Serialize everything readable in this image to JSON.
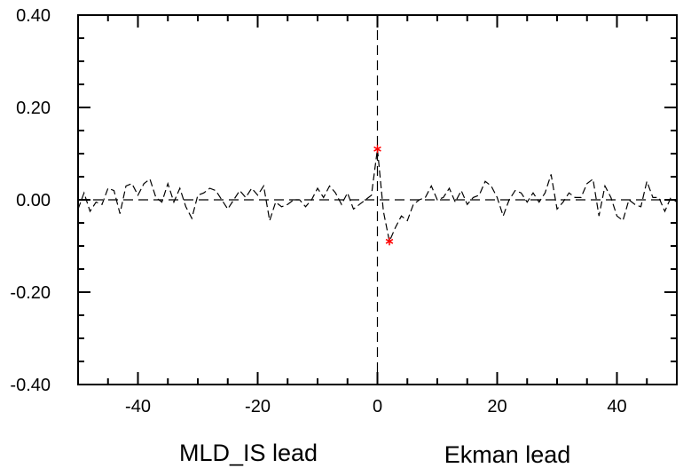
{
  "chart_data": {
    "type": "line",
    "title": "",
    "xlabel_left": "MLD_IS lead",
    "xlabel_right": "Ekman lead",
    "xlim": [
      -50,
      50
    ],
    "ylim": [
      -0.4,
      0.4
    ],
    "x_ticks": [
      -40,
      -20,
      0,
      20,
      40
    ],
    "x_tick_labels": [
      "-40",
      "-20",
      "0",
      "20",
      "40"
    ],
    "y_ticks": [
      -0.4,
      -0.2,
      0.0,
      0.2,
      0.4
    ],
    "y_tick_labels": [
      "-0.40",
      "-0.20",
      "0.00",
      "0.20",
      "0.40"
    ],
    "grid": false,
    "line_style": "dashed",
    "line_color": "#000000",
    "marker_color": "#ff0000",
    "reference_lines": {
      "horizontal_y": 0.0,
      "vertical_x": 0
    },
    "series": [
      {
        "x": [
          -50,
          -49,
          -48,
          -47,
          -46,
          -45,
          -44,
          -43,
          -42,
          -41,
          -40,
          -39,
          -38,
          -37,
          -36,
          -35,
          -34,
          -33,
          -32,
          -31,
          -30,
          -29,
          -28,
          -27,
          -26,
          -25,
          -24,
          -23,
          -22,
          -21,
          -20,
          -19,
          -18,
          -17,
          -16,
          -15,
          -14,
          -13,
          -12,
          -11,
          -10,
          -9,
          -8,
          -7,
          -6,
          -5,
          -4,
          -3,
          -2,
          -1,
          0,
          1,
          2,
          3,
          4,
          5,
          6,
          7,
          8,
          9,
          10,
          11,
          12,
          13,
          14,
          15,
          16,
          17,
          18,
          19,
          20,
          21,
          22,
          23,
          24,
          25,
          26,
          27,
          28,
          29,
          30,
          31,
          32,
          33,
          34,
          35,
          36,
          37,
          38,
          39,
          40,
          41,
          42,
          43,
          44,
          45,
          46,
          47,
          48,
          49,
          50
        ],
        "values": [
          -0.02,
          0.015,
          -0.025,
          -0.005,
          -0.01,
          0.025,
          0.02,
          -0.03,
          0.03,
          0.035,
          0.01,
          0.035,
          0.045,
          0.005,
          -0.005,
          0.035,
          -0.005,
          0.025,
          -0.015,
          -0.04,
          0.01,
          0.015,
          0.025,
          0.02,
          0.0,
          -0.02,
          0.0,
          0.02,
          0.005,
          0.025,
          0.01,
          0.03,
          -0.045,
          -0.005,
          -0.015,
          -0.01,
          0.0,
          0.0,
          -0.015,
          0.0,
          0.025,
          0.005,
          0.03,
          0.015,
          -0.01,
          0.015,
          -0.02,
          -0.01,
          0.0,
          0.01,
          0.11,
          -0.025,
          -0.09,
          -0.06,
          -0.035,
          -0.045,
          -0.01,
          0.0,
          0.005,
          0.03,
          0.0,
          0.005,
          0.025,
          -0.005,
          0.02,
          -0.01,
          0.005,
          0.01,
          0.04,
          0.03,
          0.005,
          -0.035,
          0.0,
          0.02,
          0.015,
          -0.005,
          0.015,
          -0.005,
          0.015,
          0.055,
          -0.02,
          -0.005,
          0.015,
          0.005,
          0.005,
          0.035,
          0.045,
          -0.035,
          0.03,
          0.005,
          -0.035,
          -0.045,
          0.0,
          -0.01,
          -0.015,
          0.04,
          0.005,
          0.005,
          -0.025,
          0.005,
          -0.005
        ]
      }
    ],
    "significant_markers": [
      {
        "x": 0,
        "y": 0.11
      },
      {
        "x": 2,
        "y": -0.09
      }
    ]
  }
}
